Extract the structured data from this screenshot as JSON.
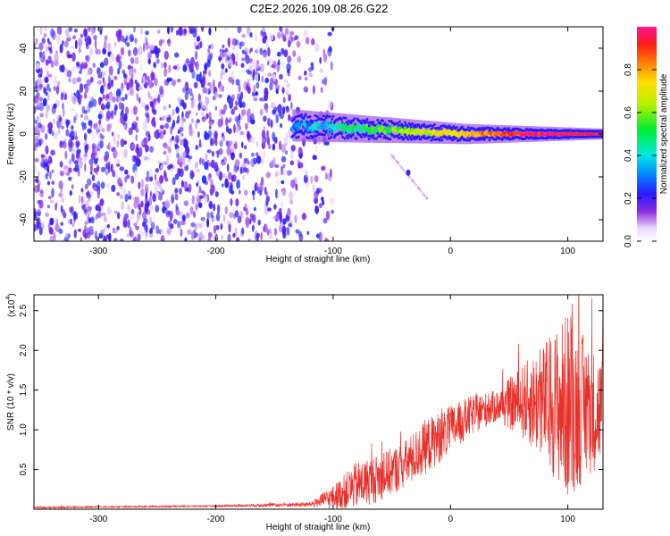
{
  "chart_data": [
    {
      "type": "heatmap",
      "title": "C2E2.2026.109.08.26.G22",
      "xlabel": "Height of straight line (km)",
      "ylabel": "Frequency (Hz)",
      "xlim": [
        -355,
        130
      ],
      "ylim": [
        -50,
        50
      ],
      "x_ticks": [
        -300,
        -200,
        -100,
        0,
        100
      ],
      "y_ticks": [
        -40,
        -20,
        0,
        20,
        40
      ],
      "colorbar": {
        "label": "Normalized spectral amplitude",
        "range": [
          0,
          1
        ],
        "ticks": [
          0.0,
          0.2,
          0.4,
          0.6,
          0.8
        ]
      },
      "features": {
        "noise_region_x": [
          -355,
          -125
        ],
        "noise_amplitude_range": [
          0.05,
          0.25
        ],
        "signal_trace_x": [
          -135,
          130
        ],
        "signal_trace_freq_hz": [
          4,
          0
        ],
        "signal_amplitude_range": [
          0.3,
          0.95
        ],
        "secondary_feature_x": [
          -50,
          -20
        ],
        "secondary_feature_freq_hz": [
          -10,
          -30
        ]
      }
    },
    {
      "type": "line",
      "xlabel": "Height of straight line (km)",
      "ylabel": "SNR (10 * v/v)",
      "multiplier_label": "(x10",
      "multiplier_exp": "4",
      "xlim": [
        -355,
        130
      ],
      "ylim": [
        0,
        2.7
      ],
      "x_ticks": [
        -300,
        -200,
        -100,
        0,
        100
      ],
      "y_ticks": [
        0.5,
        1.0,
        1.5,
        2.0,
        2.5
      ],
      "series": [
        {
          "name": "SNR",
          "color": "#e8302a",
          "envelope_x": [
            -355,
            -200,
            -120,
            -100,
            -80,
            -60,
            -40,
            -20,
            0,
            20,
            40,
            60,
            80,
            100,
            120,
            130
          ],
          "envelope_mean": [
            0.02,
            0.04,
            0.06,
            0.15,
            0.3,
            0.4,
            0.55,
            0.8,
            1.0,
            1.2,
            1.3,
            1.35,
            1.35,
            1.3,
            1.25,
            1.25
          ],
          "envelope_spread": [
            0.01,
            0.01,
            0.03,
            0.15,
            0.3,
            0.3,
            0.3,
            0.35,
            0.3,
            0.25,
            0.2,
            0.45,
            0.75,
            1.2,
            0.8,
            0.7
          ]
        }
      ]
    }
  ]
}
